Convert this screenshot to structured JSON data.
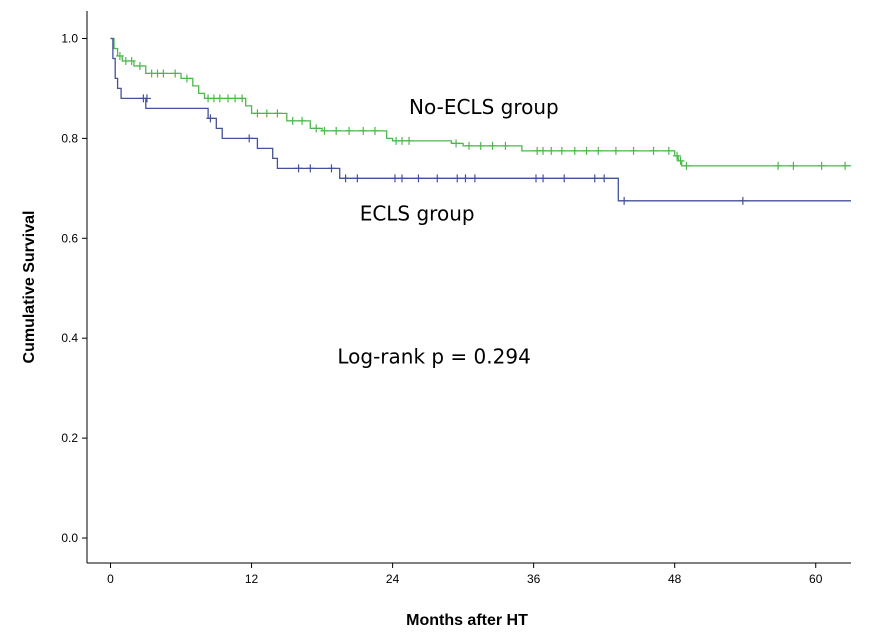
{
  "chart_data": {
    "type": "line",
    "title": "",
    "xlabel": "Months after HT",
    "ylabel": "Cumulative Survival",
    "xlim": [
      -2,
      63
    ],
    "ylim": [
      -0.05,
      1.055
    ],
    "xticks": [
      0,
      12,
      24,
      36,
      48,
      60
    ],
    "yticks": [
      0.0,
      0.2,
      0.4,
      0.6,
      0.8,
      1.0
    ],
    "ytick_labels": [
      "0.0",
      "0.2",
      "0.4",
      "0.6",
      "0.8",
      "1.0"
    ],
    "grid": false,
    "legend": "none",
    "series": [
      {
        "name": "No-ECLS group",
        "color": "#4cb84c",
        "steps": [
          [
            0,
            1.0
          ],
          [
            0.3,
            0.98
          ],
          [
            0.6,
            0.965
          ],
          [
            1.0,
            0.955
          ],
          [
            2.0,
            0.945
          ],
          [
            3.0,
            0.93
          ],
          [
            5.0,
            0.93
          ],
          [
            6.0,
            0.92
          ],
          [
            7.0,
            0.905
          ],
          [
            7.5,
            0.89
          ],
          [
            8.0,
            0.88
          ],
          [
            11.5,
            0.865
          ],
          [
            12.0,
            0.85
          ],
          [
            15.0,
            0.835
          ],
          [
            17.0,
            0.82
          ],
          [
            18.0,
            0.815
          ],
          [
            23.5,
            0.8
          ],
          [
            24.0,
            0.795
          ],
          [
            29.0,
            0.79
          ],
          [
            30.0,
            0.785
          ],
          [
            35.0,
            0.775
          ],
          [
            48.0,
            0.765
          ],
          [
            48.3,
            0.755
          ],
          [
            48.6,
            0.745
          ],
          [
            63,
            0.745
          ]
        ],
        "censored": [
          [
            0.8,
            0.965
          ],
          [
            1.3,
            0.955
          ],
          [
            1.8,
            0.955
          ],
          [
            2.5,
            0.945
          ],
          [
            3.5,
            0.93
          ],
          [
            4.0,
            0.93
          ],
          [
            4.5,
            0.93
          ],
          [
            5.5,
            0.93
          ],
          [
            6.5,
            0.92
          ],
          [
            8.3,
            0.88
          ],
          [
            8.8,
            0.88
          ],
          [
            9.3,
            0.88
          ],
          [
            10.0,
            0.88
          ],
          [
            10.6,
            0.88
          ],
          [
            11.2,
            0.88
          ],
          [
            12.5,
            0.85
          ],
          [
            13.3,
            0.85
          ],
          [
            14.2,
            0.85
          ],
          [
            15.5,
            0.835
          ],
          [
            16.3,
            0.835
          ],
          [
            17.5,
            0.82
          ],
          [
            18.2,
            0.815
          ],
          [
            19.2,
            0.815
          ],
          [
            20.3,
            0.815
          ],
          [
            21.5,
            0.815
          ],
          [
            22.5,
            0.815
          ],
          [
            24.3,
            0.795
          ],
          [
            24.8,
            0.795
          ],
          [
            25.4,
            0.795
          ],
          [
            29.4,
            0.79
          ],
          [
            30.5,
            0.785
          ],
          [
            31.5,
            0.785
          ],
          [
            32.5,
            0.785
          ],
          [
            33.6,
            0.785
          ],
          [
            36.3,
            0.775
          ],
          [
            36.8,
            0.775
          ],
          [
            37.5,
            0.775
          ],
          [
            38.4,
            0.775
          ],
          [
            39.5,
            0.775
          ],
          [
            40.5,
            0.775
          ],
          [
            41.5,
            0.775
          ],
          [
            43.0,
            0.775
          ],
          [
            44.5,
            0.775
          ],
          [
            46.2,
            0.775
          ],
          [
            47.5,
            0.775
          ],
          [
            48.2,
            0.765
          ],
          [
            48.5,
            0.755
          ],
          [
            49.0,
            0.745
          ],
          [
            56.8,
            0.745
          ],
          [
            58.1,
            0.745
          ],
          [
            60.5,
            0.745
          ],
          [
            62.5,
            0.745
          ]
        ]
      },
      {
        "name": "ECLS group",
        "color": "#44529a",
        "steps": [
          [
            0,
            1.0
          ],
          [
            0.2,
            0.96
          ],
          [
            0.4,
            0.92
          ],
          [
            0.6,
            0.9
          ],
          [
            0.9,
            0.88
          ],
          [
            3.0,
            0.86
          ],
          [
            3.3,
            0.86
          ],
          [
            8.3,
            0.84
          ],
          [
            9.0,
            0.82
          ],
          [
            9.5,
            0.8
          ],
          [
            12.5,
            0.78
          ],
          [
            13.8,
            0.76
          ],
          [
            14.2,
            0.74
          ],
          [
            19.5,
            0.72
          ],
          [
            43.0,
            0.72
          ],
          [
            43.2,
            0.675
          ],
          [
            63,
            0.675
          ]
        ],
        "censored": [
          [
            2.8,
            0.88
          ],
          [
            3.1,
            0.88
          ],
          [
            8.5,
            0.84
          ],
          [
            11.8,
            0.8
          ],
          [
            16.0,
            0.74
          ],
          [
            17.0,
            0.74
          ],
          [
            18.8,
            0.74
          ],
          [
            20.0,
            0.72
          ],
          [
            21.0,
            0.72
          ],
          [
            24.2,
            0.72
          ],
          [
            24.8,
            0.72
          ],
          [
            26.2,
            0.72
          ],
          [
            27.8,
            0.72
          ],
          [
            29.5,
            0.72
          ],
          [
            30.2,
            0.72
          ],
          [
            31.0,
            0.72
          ],
          [
            36.2,
            0.72
          ],
          [
            36.8,
            0.72
          ],
          [
            38.6,
            0.72
          ],
          [
            41.2,
            0.72
          ],
          [
            42.0,
            0.72
          ],
          [
            43.7,
            0.675
          ],
          [
            53.8,
            0.675
          ]
        ]
      }
    ],
    "annotations": [
      {
        "text": "No-ECLS group",
        "x": 25.4,
        "y": 0.863
      },
      {
        "text": "ECLS group",
        "x": 21.2,
        "y": 0.65
      },
      {
        "text": "Log-rank p = 0.294",
        "x": 19.3,
        "y": 0.363
      }
    ]
  }
}
